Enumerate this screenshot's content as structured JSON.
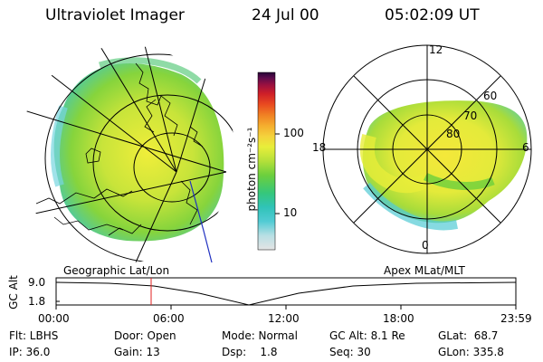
{
  "header": {
    "title": "Ultraviolet Imager",
    "date": "24 Jul 00",
    "time": "05:02:09 UT"
  },
  "colorbar": {
    "unit": "photon cm⁻²s⁻¹",
    "tick_labels": [
      "100",
      "10"
    ],
    "colors": [
      "#e4e4e4",
      "#b8dfe4",
      "#52cbd4",
      "#30c3b8",
      "#35c77b",
      "#6ccf3d",
      "#b4e03a",
      "#e8ee3a",
      "#f4d23c",
      "#f5ad2e",
      "#f08023",
      "#e94a20",
      "#cf1f28",
      "#9a1040",
      "#5a0b4c",
      "#260336"
    ]
  },
  "left_map": {
    "caption": "Geographic Lat/Lon"
  },
  "right_map": {
    "caption": "Apex MLat/MLT",
    "lat_labels": [
      "80",
      "70",
      "60"
    ],
    "mlt_labels": [
      "12",
      "18",
      "6",
      "0"
    ]
  },
  "timeline": {
    "ylabel": "GC Alt",
    "y_ticks": [
      "9.0",
      "1.8"
    ],
    "x_ticks": [
      "00:00",
      "06:00",
      "12:00",
      "18:00",
      "23:59"
    ],
    "marker_color": "#e02020"
  },
  "info": {
    "row1": [
      "Flt: LBHS",
      "Door: Open",
      "Mode: Normal",
      "GC Alt: 8.1 Re",
      "GLat:  68.7"
    ],
    "row2": [
      "IP: 36.0",
      "Gain: 13",
      "Dsp:    1.8",
      "Seq: 30",
      "GLon: 335.8"
    ]
  }
}
